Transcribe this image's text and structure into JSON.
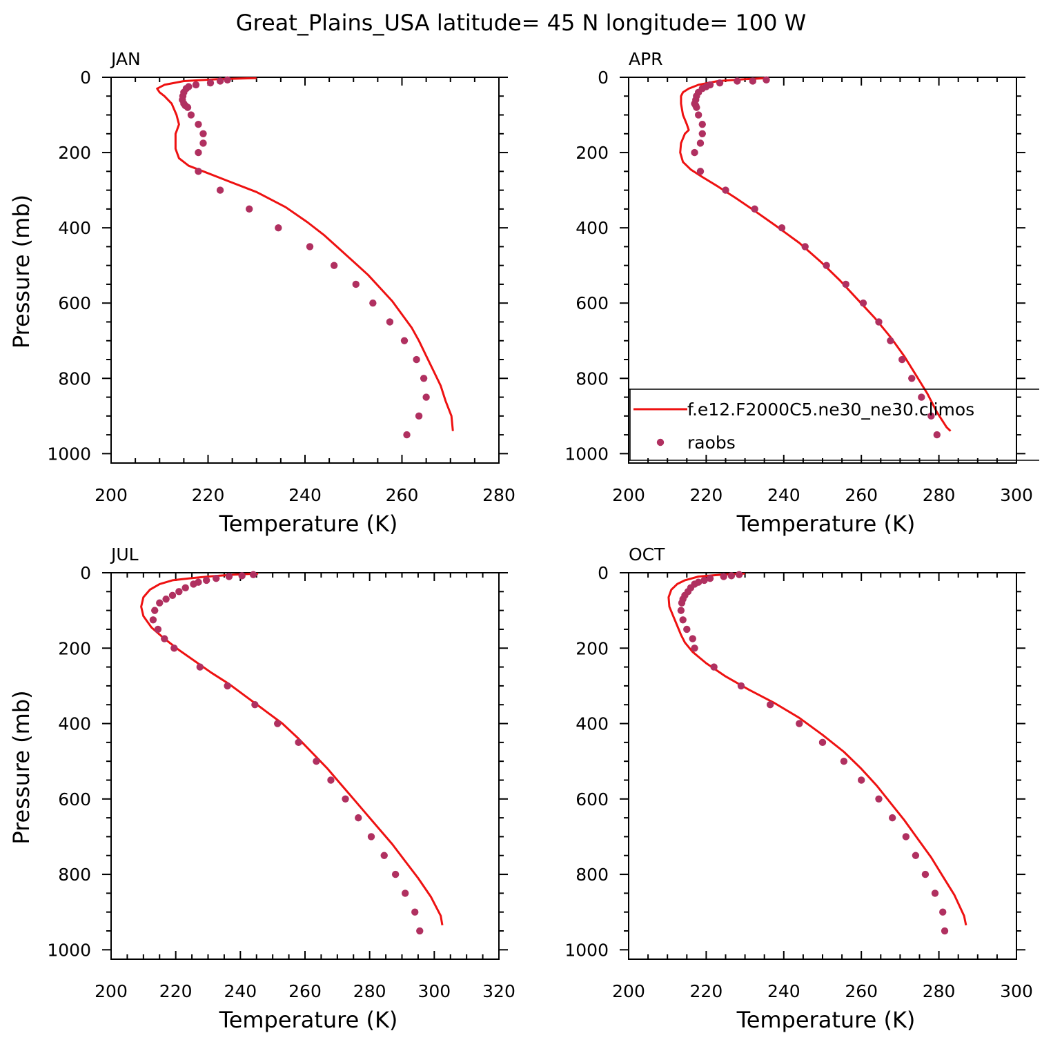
{
  "page": {
    "title": "Great_Plains_USA  latitude= 45 N longitude= 100 W"
  },
  "colors": {
    "model_line": "#ee1111",
    "obs_marker": "#b03060",
    "axis": "#000000"
  },
  "legend": {
    "model_label": "f.e12.F2000C5.ne30_ne30.climos",
    "obs_label": "raobs"
  },
  "chart_data": [
    {
      "type": "line",
      "panel": "JAN",
      "xlabel": "Temperature (K)",
      "ylabel": "Pressure (mb)",
      "xlim": [
        200,
        280
      ],
      "ylim": [
        1025,
        0
      ],
      "xticks": [
        200,
        220,
        240,
        260,
        280
      ],
      "yticks": [
        0,
        200,
        400,
        600,
        800,
        1000
      ],
      "model": {
        "name": "f.e12.F2000C5.ne30_ne30.climos",
        "temperature": [
          230.0,
          222.0,
          215.0,
          211.0,
          209.5,
          210.0,
          211.0,
          212.5,
          213.5,
          214.0,
          213.6,
          213.3,
          213.3,
          214.0,
          216.0,
          219.0,
          224.0,
          230.0,
          236.0,
          240.5,
          244.0,
          247.0,
          250.0,
          253.0,
          255.5,
          258.0,
          260.0,
          262.0,
          263.5,
          265.0,
          266.5,
          268.0,
          269.0,
          270.2,
          270.5
        ],
        "pressure": [
          2,
          5,
          10,
          20,
          30,
          40,
          50,
          70,
          100,
          125,
          140,
          150,
          190,
          215,
          235,
          250,
          275,
          305,
          345,
          385,
          420,
          455,
          490,
          525,
          560,
          595,
          630,
          665,
          700,
          740,
          780,
          820,
          860,
          900,
          940
        ]
      },
      "raobs": {
        "name": "raobs",
        "temperature": [
          224.0,
          222.5,
          220.5,
          217.5,
          216.0,
          215.5,
          215.0,
          214.8,
          214.7,
          215.0,
          215.3,
          215.8,
          216.5,
          218.0,
          219.0,
          219.0,
          218.0,
          218.0,
          222.5,
          228.5,
          234.5,
          241.0,
          246.0,
          250.5,
          254.0,
          257.5,
          260.5,
          263.0,
          264.5,
          265.0,
          263.5,
          261.0
        ],
        "pressure": [
          7,
          10,
          15,
          20,
          25,
          30,
          40,
          50,
          60,
          70,
          75,
          80,
          100,
          125,
          150,
          175,
          200,
          250,
          300,
          350,
          400,
          450,
          500,
          550,
          600,
          650,
          700,
          750,
          800,
          850,
          900,
          950
        ]
      }
    },
    {
      "type": "line",
      "panel": "APR",
      "xlabel": "Temperature (K)",
      "ylabel": "",
      "xlim": [
        200,
        300
      ],
      "ylim": [
        1025,
        0
      ],
      "xticks": [
        200,
        220,
        240,
        260,
        280,
        300
      ],
      "yticks": [
        0,
        200,
        400,
        600,
        800,
        1000
      ],
      "model": {
        "name": "f.e12.F2000C5.ne30_ne30.climos",
        "temperature": [
          236.0,
          230.0,
          223.0,
          218.0,
          215.5,
          214.0,
          213.5,
          213.5,
          214.0,
          215.0,
          215.5,
          214.5,
          213.5,
          213.3,
          214.0,
          216.0,
          219.0,
          223.0,
          227.5,
          232.5,
          238.0,
          244.0,
          249.5,
          254.5,
          259.0,
          263.5,
          267.5,
          271.0,
          274.0,
          277.0,
          279.5,
          282.0,
          283.0
        ],
        "pressure": [
          2,
          5,
          10,
          20,
          30,
          40,
          50,
          70,
          100,
          125,
          140,
          150,
          175,
          200,
          225,
          245,
          265,
          290,
          320,
          355,
          395,
          440,
          490,
          540,
          590,
          640,
          690,
          740,
          790,
          840,
          890,
          930,
          940
        ]
      },
      "raobs": {
        "name": "raobs",
        "temperature": [
          235.5,
          232.0,
          228.0,
          223.5,
          221.0,
          220.0,
          219.0,
          218.0,
          217.5,
          217.3,
          217.0,
          217.3,
          217.5,
          218.0,
          219.0,
          219.0,
          218.5,
          217.0,
          218.5,
          225.0,
          232.5,
          239.5,
          245.5,
          251.0,
          256.0,
          260.5,
          264.5,
          267.5,
          270.5,
          273.0,
          275.5,
          278.0,
          279.5
        ],
        "pressure": [
          7,
          10,
          10,
          15,
          20,
          25,
          30,
          40,
          50,
          60,
          70,
          75,
          80,
          100,
          125,
          150,
          175,
          200,
          250,
          300,
          350,
          400,
          450,
          500,
          550,
          600,
          650,
          700,
          750,
          800,
          850,
          900,
          950
        ]
      }
    },
    {
      "type": "line",
      "panel": "JUL",
      "xlabel": "Temperature (K)",
      "ylabel": "Pressure (mb)",
      "xlim": [
        200,
        320
      ],
      "ylim": [
        1025,
        0
      ],
      "xticks": [
        200,
        220,
        240,
        260,
        280,
        300,
        320
      ],
      "yticks": [
        0,
        200,
        400,
        600,
        800,
        1000
      ],
      "model": {
        "name": "f.e12.F2000C5.ne30_ne30.climos",
        "temperature": [
          245.5,
          238.0,
          230.0,
          224.0,
          219.0,
          215.0,
          212.0,
          210.0,
          209.3,
          210.0,
          212.5,
          216.5,
          221.0,
          226.0,
          231.0,
          236.5,
          242.0,
          247.5,
          253.0,
          258.0,
          262.5,
          267.0,
          271.0,
          275.0,
          279.0,
          283.0,
          287.0,
          291.0,
          295.0,
          299.0,
          302.0,
          302.5
        ],
        "pressure": [
          2,
          5,
          10,
          15,
          20,
          30,
          45,
          65,
          90,
          115,
          145,
          175,
          205,
          235,
          265,
          295,
          330,
          365,
          400,
          440,
          480,
          520,
          560,
          600,
          640,
          680,
          720,
          765,
          810,
          860,
          910,
          935
        ]
      },
      "raobs": {
        "name": "raobs",
        "temperature": [
          244.0,
          240.5,
          236.5,
          232.5,
          229.5,
          227.0,
          225.5,
          223.0,
          221.0,
          219.0,
          217.0,
          215.0,
          213.5,
          213.0,
          214.5,
          216.5,
          219.5,
          227.5,
          236.0,
          244.5,
          251.5,
          258.0,
          263.5,
          268.0,
          272.5,
          276.5,
          280.5,
          284.5,
          288.0,
          291.0,
          294.0,
          295.5
        ],
        "pressure": [
          5,
          8,
          10,
          15,
          20,
          25,
          30,
          40,
          50,
          60,
          70,
          80,
          100,
          125,
          150,
          175,
          200,
          250,
          300,
          350,
          400,
          450,
          500,
          550,
          600,
          650,
          700,
          750,
          800,
          850,
          900,
          950
        ]
      }
    },
    {
      "type": "line",
      "panel": "OCT",
      "xlabel": "Temperature (K)",
      "ylabel": "",
      "xlim": [
        200,
        300
      ],
      "ylim": [
        1025,
        0
      ],
      "xticks": [
        200,
        220,
        240,
        260,
        280,
        300
      ],
      "yticks": [
        0,
        200,
        400,
        600,
        800,
        1000
      ],
      "model": {
        "name": "f.e12.F2000C5.ne30_ne30.climos",
        "temperature": [
          230.0,
          224.0,
          218.0,
          214.5,
          212.5,
          211.0,
          210.3,
          210.5,
          211.5,
          212.5,
          213.5,
          214.5,
          216.5,
          220.0,
          225.0,
          231.0,
          237.5,
          244.0,
          250.0,
          255.5,
          260.0,
          264.0,
          267.5,
          271.0,
          274.5,
          278.0,
          281.0,
          284.0,
          286.5,
          287.0
        ],
        "pressure": [
          2,
          5,
          10,
          20,
          30,
          45,
          65,
          90,
          115,
          140,
          165,
          185,
          210,
          240,
          275,
          310,
          345,
          385,
          430,
          475,
          520,
          565,
          610,
          655,
          705,
          755,
          805,
          855,
          910,
          935
        ]
      },
      "raobs": {
        "name": "raobs",
        "temperature": [
          228.5,
          226.5,
          224.5,
          221.0,
          219.5,
          218.0,
          217.0,
          216.0,
          215.3,
          214.5,
          214.0,
          213.7,
          213.5,
          214.0,
          215.0,
          216.5,
          217.0,
          222.0,
          229.0,
          236.5,
          244.0,
          250.0,
          255.5,
          260.0,
          264.5,
          268.0,
          271.5,
          274.0,
          276.5,
          279.0,
          281.0,
          281.5
        ],
        "pressure": [
          5,
          8,
          10,
          15,
          20,
          25,
          30,
          40,
          50,
          60,
          70,
          80,
          100,
          125,
          150,
          175,
          200,
          250,
          300,
          350,
          400,
          450,
          500,
          550,
          600,
          650,
          700,
          750,
          800,
          850,
          900,
          950
        ]
      }
    }
  ]
}
